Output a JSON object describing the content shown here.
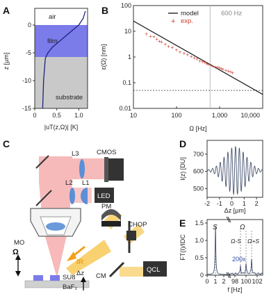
{
  "panels": {
    "A": {
      "label": "A",
      "region_air": "air",
      "region_film": "film",
      "region_substrate": "substrate",
      "ylabel": "z [µm]",
      "xlabel": "|uT(z,Ω)| [K]",
      "yticks": [
        "0",
        "-5",
        "-10",
        "-15"
      ],
      "xticks": [
        "0",
        "0.5",
        "1.0"
      ],
      "colors": {
        "film": "#7b7bea",
        "substrate": "#c9c9c9",
        "curve": "#1a237e"
      }
    },
    "B": {
      "label": "B",
      "ylabel": "ε(Ω) [nm]",
      "xlabel": "Ω [Hz]",
      "legend_model": "model",
      "legend_exp": "exp.",
      "vline_label": "600 Hz",
      "yticks": [
        "100",
        "10",
        "1",
        "0.1",
        "0.01"
      ],
      "xticks": [
        "10",
        "100",
        "1,000",
        "10,000"
      ],
      "colors": {
        "model": "#111111",
        "exp": "#d03a2a",
        "vline": "#aaaaaa"
      }
    },
    "C": {
      "label": "C",
      "labels": {
        "L3": "L3",
        "CMOS": "CMOS",
        "L2": "L2",
        "L1": "L1",
        "LED": "LED",
        "PM": "PM",
        "MO": "MO",
        "CHOP": "CHOP",
        "IR": "IR",
        "omega": "Ω",
        "CM": "CM",
        "QCL": "QCL",
        "SU8": "SU8",
        "BaF2": "BaF₂",
        "dz": "Δz"
      },
      "colors": {
        "beam": "#f08080",
        "ir": "#f5c242",
        "lens": "#5b8fd6",
        "dark": "#333333"
      }
    },
    "D": {
      "label": "D",
      "ylabel": "I(z) [DU]",
      "xlabel": "Δz [µm]",
      "yticks": [
        "700",
        "600",
        "500"
      ],
      "xticks": [
        "-2",
        "-1",
        "0",
        "1",
        "2"
      ],
      "colors": {
        "signal": "#44516e"
      }
    },
    "E": {
      "label": "E",
      "ylabel": "FT(I)/IDC",
      "xlabel": "f [Hz]",
      "yticks": [
        "1.5",
        "1.0",
        "0.5",
        "0"
      ],
      "xticks": [
        "0",
        "1",
        "2",
        "98",
        "100",
        "102"
      ],
      "peak_S": "S",
      "peak_omega": "Ω",
      "peak_omega_minus_S": "Ω-S",
      "peak_omega_plus_S": "Ω+S",
      "zoom": "200x",
      "colors": {
        "signal": "#44516e",
        "zoom": "#2e4fb0"
      }
    }
  },
  "chart_data": [
    {
      "panel": "A",
      "type": "line",
      "xlabel": "|uT(z,Ω)| [K]",
      "ylabel": "z [µm]",
      "xlim": [
        0,
        1.2
      ],
      "ylim": [
        -15,
        3
      ],
      "layers": [
        {
          "name": "air",
          "z_range": [
            0,
            3
          ]
        },
        {
          "name": "film",
          "z_range": [
            -5,
            0
          ]
        },
        {
          "name": "substrate",
          "z_range": [
            -15,
            -5
          ]
        }
      ],
      "x": [
        0.18,
        0.2,
        0.24,
        0.3,
        0.4,
        0.55,
        0.7,
        0.85,
        1.0,
        1.1,
        1.15
      ],
      "y": [
        -15,
        -10,
        -6,
        -5,
        -4,
        -3,
        -2,
        -1,
        0,
        1.2,
        2.5
      ]
    },
    {
      "panel": "B",
      "type": "line",
      "scale": "log-log",
      "xlabel": "Ω [Hz]",
      "ylabel": "ε(Ω) [nm]",
      "xlim": [
        10,
        10000
      ],
      "ylim": [
        0.01,
        100
      ],
      "vline_x": 600,
      "hline_y": 0.05,
      "series": [
        {
          "name": "model",
          "x": [
            10,
            10000
          ],
          "y": [
            25,
            0.035
          ]
        },
        {
          "name": "exp.",
          "x": [
            20,
            25,
            30,
            35,
            40,
            45,
            55,
            65,
            80,
            100,
            120,
            150,
            180,
            220,
            260,
            300,
            350,
            400,
            450,
            500,
            550,
            650,
            700,
            800,
            900,
            1000,
            1100,
            1200,
            1400,
            1600,
            1800,
            2000
          ],
          "y": [
            8,
            6.5,
            6.2,
            5,
            4.2,
            3.9,
            3.2,
            2.6,
            2.4,
            1.95,
            1.6,
            1.4,
            1.25,
            1.05,
            0.95,
            0.85,
            0.72,
            0.67,
            0.62,
            0.55,
            0.52,
            0.48,
            0.45,
            0.42,
            0.4,
            0.38,
            0.36,
            0.34,
            0.31,
            0.29,
            0.27,
            0.25
          ]
        }
      ]
    },
    {
      "panel": "D",
      "type": "line",
      "xlabel": "Δz [µm]",
      "ylabel": "I(z) [DU]",
      "xlim": [
        -2,
        2.5
      ],
      "ylim": [
        450,
        780
      ],
      "description_params": {
        "center": 0.3,
        "period_um": 0.31,
        "mean": 605,
        "amplitude_max": 140,
        "envelope_width_um": 1.2
      }
    },
    {
      "panel": "E",
      "type": "line",
      "xlabel": "f [Hz]",
      "ylabel": "FT(I)/IDC",
      "ylim": [
        0,
        1.6
      ],
      "segments": [
        {
          "xlim": [
            0,
            2.5
          ],
          "peaks": [
            {
              "f": 1.0,
              "a": 1.4
            }
          ]
        },
        {
          "xlim": [
            97,
            103
          ],
          "zoom_factor": 200,
          "peaks": [
            {
              "f": 100,
              "a": 0.3
            },
            {
              "f": 99,
              "a": 0.22
            },
            {
              "f": 101,
              "a": 0.42
            }
          ]
        }
      ]
    }
  ]
}
